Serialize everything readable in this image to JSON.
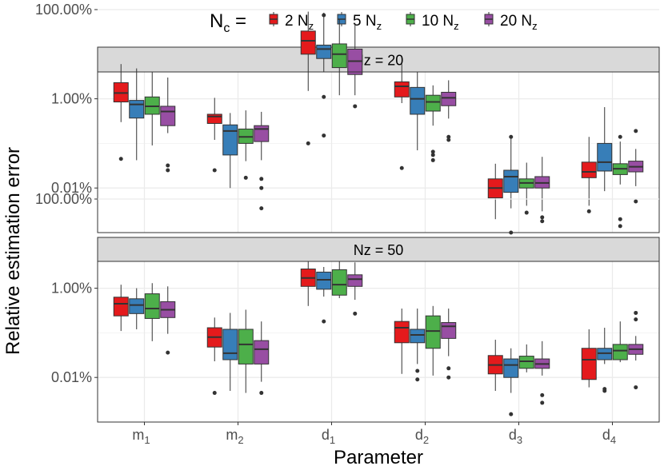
{
  "chart_data": {
    "type": "box",
    "title": "",
    "xlabel": "Parameter",
    "ylabel": "Relative estimation error",
    "y_scale": "log10",
    "ylim": [
      1e-05,
      0.04
    ],
    "y_ticks": [
      {
        "value": 1,
        "label": "100.00%"
      },
      {
        "value": 0.01,
        "label": "1.00%"
      },
      {
        "value": 0.0001,
        "label": "0.01%"
      }
    ],
    "legend": {
      "title_main": "N",
      "title_sub": "c",
      "title_suffix": " =",
      "position": "top",
      "entries": [
        {
          "count": "2",
          "unit": "N",
          "sub": "z",
          "color": "#e41a1c"
        },
        {
          "count": "5",
          "unit": "N",
          "sub": "z",
          "color": "#377eb8"
        },
        {
          "count": "10",
          "unit": "N",
          "sub": "z",
          "color": "#4daf4a"
        },
        {
          "count": "20",
          "unit": "N",
          "sub": "z",
          "color": "#984ea3"
        }
      ]
    },
    "categories": [
      {
        "main": "m",
        "sub": "1"
      },
      {
        "main": "m",
        "sub": "2"
      },
      {
        "main": "d",
        "sub": "1"
      },
      {
        "main": "d",
        "sub": "2"
      },
      {
        "main": "d",
        "sub": "3"
      },
      {
        "main": "d",
        "sub": "4"
      }
    ],
    "panels": [
      {
        "label": "Nz = 20",
        "groups": [
          [
            {
              "low": 0.003,
              "q1": 0.0085,
              "med": 0.0135,
              "q3": 0.023,
              "high": 0.06,
              "out": [
                0.00045
              ]
            },
            {
              "low": 0.00042,
              "q1": 0.0037,
              "med": 0.0075,
              "q3": 0.0092,
              "high": 0.048,
              "out": []
            },
            {
              "low": 0.0009,
              "q1": 0.0045,
              "med": 0.0068,
              "q3": 0.011,
              "high": 0.04,
              "out": []
            },
            {
              "low": 0.0017,
              "q1": 0.0025,
              "med": 0.0052,
              "q3": 0.0068,
              "high": 0.03,
              "out": [
                0.00032,
                0.00025
              ]
            }
          ],
          [
            {
              "low": 0.0012,
              "q1": 0.0028,
              "med": 0.004,
              "q3": 0.0045,
              "high": 0.0105,
              "out": [
                0.00025
              ]
            },
            {
              "low": 0.0001,
              "q1": 0.00055,
              "med": 0.0019,
              "q3": 0.0026,
              "high": 0.0048,
              "out": []
            },
            {
              "low": 0.0004,
              "q1": 0.001,
              "med": 0.0014,
              "q3": 0.0021,
              "high": 0.0055,
              "out": [
                0.00017
              ]
            },
            {
              "low": 0.00042,
              "q1": 0.0011,
              "med": 0.0021,
              "q3": 0.0025,
              "high": 0.0051,
              "out": [
                0.00016,
                0.0001,
                3.5e-05
              ]
            }
          ],
          [
            {
              "low": 0.015,
              "q1": 0.1,
              "med": 0.2,
              "q3": 0.33,
              "high": 0.9,
              "out": [
                0.001
              ]
            },
            {
              "low": 0.04,
              "q1": 0.08,
              "med": 0.13,
              "q3": 0.16,
              "high": 0.85,
              "out": [
                0.75,
                0.011,
                0.0015
              ]
            },
            {
              "low": 0.012,
              "q1": 0.05,
              "med": 0.1,
              "q3": 0.17,
              "high": 0.6,
              "out": []
            },
            {
              "low": 0.012,
              "q1": 0.035,
              "med": 0.07,
              "q3": 0.13,
              "high": 0.5,
              "out": [
                0.0068
              ]
            }
          ],
          [
            {
              "low": 0.008,
              "q1": 0.011,
              "med": 0.019,
              "q3": 0.024,
              "high": 0.06,
              "out": [
                0.00028
              ]
            },
            {
              "low": 0.0007,
              "q1": 0.0045,
              "med": 0.01,
              "q3": 0.018,
              "high": 0.04,
              "out": []
            },
            {
              "low": 0.0025,
              "q1": 0.0053,
              "med": 0.0085,
              "q3": 0.012,
              "high": 0.02,
              "out": [
                0.00065,
                0.00055,
                0.00042
              ]
            },
            {
              "low": 0.0036,
              "q1": 0.007,
              "med": 0.0105,
              "q3": 0.014,
              "high": 0.026,
              "out": [
                0.0014,
                0.0012
              ]
            }
          ],
          [
            {
              "low": 2e-05,
              "q1": 6e-05,
              "med": 0.0001,
              "q3": 0.00016,
              "high": 0.00035,
              "out": []
            },
            {
              "low": 3.5e-05,
              "q1": 8e-05,
              "med": 0.00018,
              "q3": 0.00025,
              "high": 0.0014,
              "out": [
                0.0014,
                1e-05
              ]
            },
            {
              "low": 4e-05,
              "q1": 0.0001,
              "med": 0.00013,
              "q3": 0.00016,
              "high": 0.00037,
              "out": [
                2.8e-05
              ]
            },
            {
              "low": 3e-05,
              "q1": 0.0001,
              "med": 0.00013,
              "q3": 0.00018,
              "high": 0.0005,
              "out": [
                2.2e-05,
                1.8e-05
              ]
            }
          ],
          [
            {
              "low": 4e-05,
              "q1": 0.00017,
              "med": 0.00023,
              "q3": 0.00038,
              "high": 0.0014,
              "out": [
                3e-05,
                7.2e-06
              ]
            },
            {
              "low": 8.5e-05,
              "q1": 0.00024,
              "med": 0.00038,
              "q3": 0.001,
              "high": 0.0065,
              "out": [
                3.5e-06
              ]
            },
            {
              "low": 0.00012,
              "q1": 0.0002,
              "med": 0.00027,
              "q3": 0.00035,
              "high": 0.0011,
              "out": [
                0.0014,
                2e-05,
                1.4e-05
              ]
            },
            {
              "low": 0.00011,
              "q1": 0.00023,
              "med": 0.0003,
              "q3": 0.0004,
              "high": 0.00075,
              "out": [
                0.0019,
                5e-05
              ]
            }
          ]
        ]
      },
      {
        "label": "Nz = 50",
        "groups": [
          [
            {
              "low": 0.0011,
              "q1": 0.0024,
              "med": 0.0045,
              "q3": 0.0063,
              "high": 0.012,
              "out": []
            },
            {
              "low": 0.0012,
              "q1": 0.0027,
              "med": 0.0042,
              "q3": 0.0058,
              "high": 0.01,
              "out": []
            },
            {
              "low": 0.00065,
              "q1": 0.0021,
              "med": 0.0035,
              "q3": 0.0075,
              "high": 0.013,
              "out": []
            },
            {
              "low": 0.00095,
              "q1": 0.0022,
              "med": 0.0033,
              "q3": 0.005,
              "high": 0.011,
              "out": [
                0.00036
              ]
            }
          ],
          [
            {
              "low": 0.00023,
              "q1": 0.00048,
              "med": 0.0008,
              "q3": 0.0013,
              "high": 0.0022,
              "out": [
                4.5e-05
              ]
            },
            {
              "low": 5e-05,
              "q1": 0.00025,
              "med": 0.00035,
              "q3": 0.0012,
              "high": 0.0028,
              "out": []
            },
            {
              "low": 4.5e-05,
              "q1": 0.0002,
              "med": 0.00055,
              "q3": 0.0012,
              "high": 0.0033,
              "out": []
            },
            {
              "low": 8e-05,
              "q1": 0.0002,
              "med": 0.00043,
              "q3": 0.00067,
              "high": 0.0018,
              "out": [
                4.5e-05
              ]
            }
          ],
          [
            {
              "low": 0.004,
              "q1": 0.011,
              "med": 0.017,
              "q3": 0.027,
              "high": 0.04,
              "out": []
            },
            {
              "low": 0.0065,
              "q1": 0.0095,
              "med": 0.0155,
              "q3": 0.023,
              "high": 0.03,
              "out": [
                0.0018
              ]
            },
            {
              "low": 0.006,
              "q1": 0.007,
              "med": 0.012,
              "q3": 0.026,
              "high": 0.04,
              "out": []
            },
            {
              "low": 0.0055,
              "q1": 0.011,
              "med": 0.016,
              "q3": 0.02,
              "high": 0.038,
              "out": [
                0.0027
              ]
            }
          ],
          [
            {
              "low": 0.00012,
              "q1": 0.0006,
              "med": 0.0013,
              "q3": 0.0018,
              "high": 0.0035,
              "out": []
            },
            {
              "low": 0.0002,
              "q1": 0.0006,
              "med": 0.0009,
              "q3": 0.0012,
              "high": 0.0035,
              "out": [
                0.00014,
                9e-05
              ]
            },
            {
              "low": 0.00011,
              "q1": 0.00045,
              "med": 0.0011,
              "q3": 0.0024,
              "high": 0.004,
              "out": []
            },
            {
              "low": 0.0003,
              "q1": 0.00075,
              "med": 0.0014,
              "q3": 0.0017,
              "high": 0.0035,
              "out": [
                0.00016,
                0.0001
              ]
            }
          ],
          [
            {
              "low": 5e-05,
              "q1": 0.00012,
              "med": 0.00019,
              "q3": 0.00031,
              "high": 0.0007,
              "out": []
            },
            {
              "low": 4.5e-05,
              "q1": 0.0001,
              "med": 0.00019,
              "q3": 0.00026,
              "high": 0.00045,
              "out": [
                1.5e-05
              ]
            },
            {
              "low": 0.00013,
              "q1": 0.00016,
              "med": 0.00023,
              "q3": 0.0003,
              "high": 0.00055,
              "out": []
            },
            {
              "low": 0.00011,
              "q1": 0.00016,
              "med": 0.0002,
              "q3": 0.00026,
              "high": 0.00065,
              "out": [
                4e-05,
                2.7e-05
              ]
            }
          ],
          [
            {
              "low": 6e-05,
              "q1": 9e-05,
              "med": 0.00025,
              "q3": 0.00045,
              "high": 0.0012,
              "out": []
            },
            {
              "low": 0.0002,
              "q1": 0.00025,
              "med": 0.00035,
              "q3": 0.00045,
              "high": 0.0013,
              "out": [
                5.5e-05,
                5e-05
              ]
            },
            {
              "low": 0.00022,
              "q1": 0.00025,
              "med": 0.0004,
              "q3": 0.00055,
              "high": 0.0018,
              "out": []
            },
            {
              "low": 0.00024,
              "q1": 0.00033,
              "med": 0.00043,
              "q3": 0.00055,
              "high": 0.00085,
              "out": [
                0.0028,
                0.002,
                6e-05
              ]
            }
          ]
        ]
      }
    ]
  }
}
